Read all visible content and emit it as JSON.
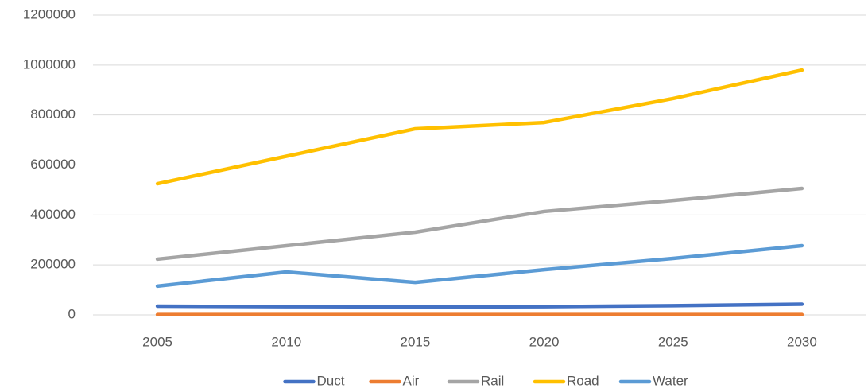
{
  "chart_data": {
    "type": "line",
    "categories": [
      "2005",
      "2010",
      "2015",
      "2020",
      "2025",
      "2030"
    ],
    "series": [
      {
        "name": "Duct",
        "color": "#4472c4",
        "values": [
          35000,
          33000,
          32000,
          33000,
          37000,
          43000
        ]
      },
      {
        "name": "Air",
        "color": "#ed7d31",
        "values": [
          1000,
          1000,
          1000,
          1000,
          1000,
          1000
        ]
      },
      {
        "name": "Rail",
        "color": "#a5a5a5",
        "values": [
          223000,
          277000,
          331000,
          414000,
          458000,
          506000
        ]
      },
      {
        "name": "Road",
        "color": "#ffc000",
        "values": [
          525000,
          635000,
          745000,
          770000,
          866000,
          980000
        ]
      },
      {
        "name": "Water",
        "color": "#5b9bd5",
        "values": [
          115000,
          172000,
          130000,
          181000,
          226000,
          277000
        ]
      }
    ],
    "ylim": [
      0,
      1200000
    ],
    "yticks": [
      0,
      200000,
      400000,
      600000,
      800000,
      1000000,
      1200000
    ],
    "grid": true,
    "legend": "bottom"
  }
}
